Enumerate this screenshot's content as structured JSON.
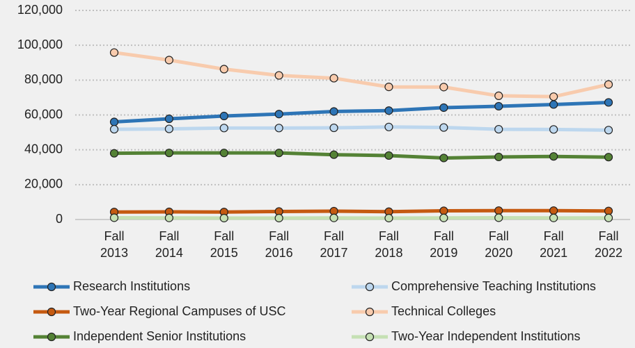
{
  "chart_data": {
    "type": "line",
    "categories": [
      "Fall 2013",
      "Fall 2014",
      "Fall 2015",
      "Fall 2016",
      "Fall 2017",
      "Fall 2018",
      "Fall 2019",
      "Fall 2020",
      "Fall 2021",
      "Fall 2022"
    ],
    "series": [
      {
        "name": "Research Institutions",
        "color": "#2e75b6",
        "values": [
          56000,
          57800,
          59400,
          60500,
          62000,
          62500,
          64200,
          65000,
          66000,
          67200
        ]
      },
      {
        "name": "Comprehensive Teaching Institutions",
        "color": "#bdd7ee",
        "values": [
          51800,
          52000,
          52500,
          52500,
          52600,
          53100,
          52800,
          51800,
          51700,
          51300
        ]
      },
      {
        "name": "Two-Year Regional Campuses of USC",
        "color": "#c55a11",
        "values": [
          4300,
          4400,
          4300,
          4600,
          4800,
          4500,
          5000,
          5100,
          5100,
          4900
        ]
      },
      {
        "name": "Technical Colleges",
        "color": "#f8cbad",
        "values": [
          95800,
          91500,
          86300,
          82700,
          81100,
          76100,
          76000,
          71000,
          70500,
          77500
        ]
      },
      {
        "name": "Independent Senior Institutions",
        "color": "#548235",
        "values": [
          38000,
          38200,
          38200,
          38200,
          37200,
          36700,
          35300,
          35900,
          36200,
          35800
        ]
      },
      {
        "name": "Two-Year Independent Institutions",
        "color": "#c5e0b4",
        "values": [
          1000,
          900,
          800,
          800,
          900,
          800,
          900,
          1000,
          900,
          900
        ]
      }
    ],
    "ylim": [
      0,
      120000
    ],
    "yticks": [
      0,
      {
        "value": 20000,
        "label": "20,000"
      },
      {
        "value": 40000,
        "label": "40,000"
      },
      {
        "value": 60000,
        "label": "60,000"
      },
      {
        "value": 80000,
        "label": "80,000"
      },
      {
        "value": 100000,
        "label": "100,000"
      },
      {
        "value": 120000,
        "label": "120,000"
      }
    ],
    "grid": true,
    "legend": "bottom"
  }
}
